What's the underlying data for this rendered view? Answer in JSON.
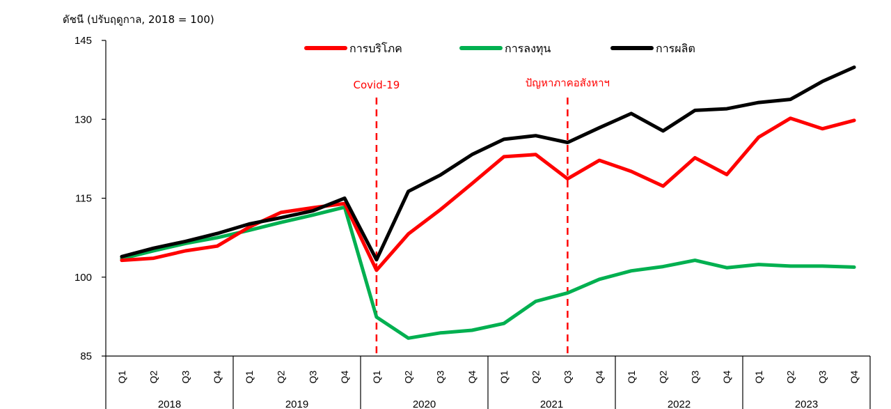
{
  "chart_data": {
    "type": "line",
    "ylabel": "ดัชนี (ปรับฤดูกาล, 2018 = 100)",
    "ylim": [
      85,
      145
    ],
    "yticks": [
      "145",
      "130",
      "115",
      "100",
      "85"
    ],
    "quarters": [
      "Q1",
      "Q2",
      "Q3",
      "Q4"
    ],
    "years": [
      "2018",
      "2019",
      "2020",
      "2021",
      "2022",
      "2023"
    ],
    "categories": [
      "2018 Q1",
      "2018 Q2",
      "2018 Q3",
      "2018 Q4",
      "2019 Q1",
      "2019 Q2",
      "2019 Q3",
      "2019 Q4",
      "2020 Q1",
      "2020 Q2",
      "2020 Q3",
      "2020 Q4",
      "2021 Q1",
      "2021 Q2",
      "2021 Q3",
      "2021 Q4",
      "2022 Q1",
      "2022 Q2",
      "2022 Q3",
      "2022 Q4",
      "2023 Q1",
      "2023 Q2",
      "2023 Q3",
      "2023 Q4"
    ],
    "series": [
      {
        "name": "การบริโภค",
        "color": "#ff0000",
        "values": [
          103.2,
          103.6,
          105.0,
          105.9,
          109.5,
          112.3,
          113.2,
          114.0,
          101.3,
          108.2,
          112.8,
          117.8,
          122.9,
          123.3,
          118.7,
          122.2,
          120.1,
          117.3,
          122.7,
          119.5,
          126.6,
          130.2,
          128.2,
          129.8
        ]
      },
      {
        "name": "การลงทุน",
        "color": "#00b050",
        "values": [
          103.5,
          105.0,
          106.4,
          107.5,
          108.9,
          110.4,
          111.8,
          113.3,
          92.4,
          88.4,
          89.4,
          89.9,
          91.2,
          95.4,
          97.0,
          99.6,
          101.2,
          102.0,
          103.2,
          101.8,
          102.4,
          102.1,
          102.1,
          101.9
        ]
      },
      {
        "name": "การผลิต",
        "color": "#000000",
        "values": [
          103.9,
          105.5,
          106.8,
          108.3,
          110.1,
          111.3,
          112.6,
          115.0,
          103.3,
          116.3,
          119.4,
          123.3,
          126.2,
          126.9,
          125.6,
          128.4,
          131.1,
          127.8,
          131.7,
          132.0,
          133.2,
          133.8,
          137.2,
          139.9
        ]
      }
    ],
    "annotations": [
      {
        "label": "Covid-19",
        "at_category": "2020 Q1"
      },
      {
        "label": "ปัญหาภาคอสังหาฯ",
        "at_category": "2021 Q3"
      }
    ],
    "legend_position": "top-center",
    "grid": false
  }
}
